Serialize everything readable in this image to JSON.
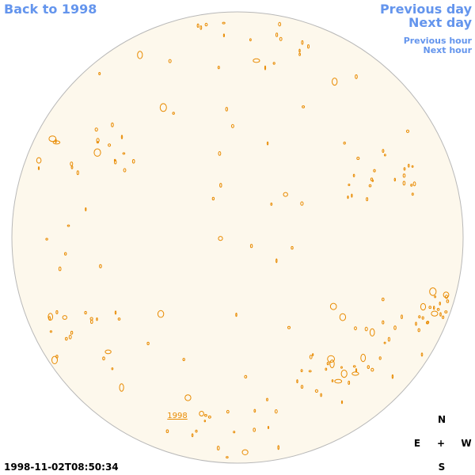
{
  "nav": {
    "back": "Back to 1998",
    "previous_day": "Previous day",
    "next_day": "Next day",
    "previous_hour": "Previous hour",
    "next_hour": "Next hour"
  },
  "disk": {
    "region_label": "1998"
  },
  "compass": {
    "n": "N",
    "center": "+",
    "e": "E",
    "w": "W",
    "s": "S"
  },
  "timestamp": "1998-11-02T08:50:34"
}
